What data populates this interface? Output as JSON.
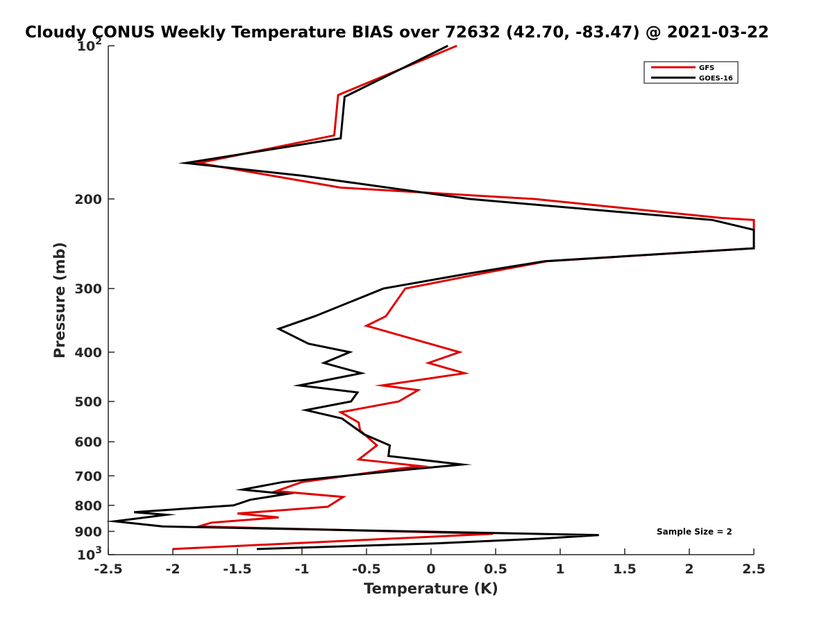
{
  "chart_data": {
    "type": "line",
    "title": "Cloudy CONUS Weekly Temperature BIAS over 72632 (42.70, -83.47) @ 2021-03-22",
    "xlabel": "Temperature (K)",
    "ylabel": "Pressure (mb)",
    "xlim": [
      -2.5,
      2.5
    ],
    "ylim": [
      100,
      1000
    ],
    "yscale": "log",
    "y_reversed": true,
    "x_ticks": [
      -2.5,
      -2,
      -1.5,
      -1,
      -0.5,
      0,
      0.5,
      1,
      1.5,
      2,
      2.5
    ],
    "x_tick_labels": [
      "-2.5",
      "-2",
      "-1.5",
      "-1",
      "-0.5",
      "0",
      "0.5",
      "1",
      "1.5",
      "2",
      "2.5"
    ],
    "y_ticks": [
      100,
      200,
      300,
      400,
      500,
      600,
      700,
      800,
      900,
      1000
    ],
    "y_tick_labels": [
      {
        "base": "10",
        "exp": "2"
      },
      {
        "base": "200",
        "exp": ""
      },
      {
        "base": "300",
        "exp": ""
      },
      {
        "base": "400",
        "exp": ""
      },
      {
        "base": "500",
        "exp": ""
      },
      {
        "base": "600",
        "exp": ""
      },
      {
        "base": "700",
        "exp": ""
      },
      {
        "base": "800",
        "exp": ""
      },
      {
        "base": "900",
        "exp": ""
      },
      {
        "base": "10",
        "exp": "3"
      }
    ],
    "grid": false,
    "legend_position": "top-right",
    "annotation": "Sample Size = 2",
    "series": [
      {
        "name": "GFS",
        "color": "#e00000",
        "points": [
          [
            0.2,
            100
          ],
          [
            -0.72,
            125
          ],
          [
            -0.75,
            150
          ],
          [
            -1.8,
            170
          ],
          [
            -0.7,
            190
          ],
          [
            0.8,
            200
          ],
          [
            2.25,
            218
          ],
          [
            2.5,
            220
          ],
          [
            2.5,
            250
          ],
          [
            0.9,
            265
          ],
          [
            0.4,
            280
          ],
          [
            -0.2,
            300
          ],
          [
            -0.35,
            340
          ],
          [
            -0.5,
            355
          ],
          [
            0.22,
            400
          ],
          [
            -0.02,
            420
          ],
          [
            0.26,
            440
          ],
          [
            -0.38,
            465
          ],
          [
            -0.1,
            475
          ],
          [
            -0.25,
            500
          ],
          [
            -0.7,
            525
          ],
          [
            -0.56,
            550
          ],
          [
            -0.55,
            570
          ],
          [
            -0.42,
            610
          ],
          [
            -0.56,
            650
          ],
          [
            -0.08,
            670
          ],
          [
            -0.3,
            680
          ],
          [
            -1.0,
            720
          ],
          [
            -1.2,
            750
          ],
          [
            -0.68,
            770
          ],
          [
            -0.8,
            805
          ],
          [
            -1.5,
            830
          ],
          [
            -1.18,
            845
          ],
          [
            -1.7,
            865
          ],
          [
            -1.8,
            880
          ],
          [
            0.48,
            910
          ],
          [
            -2.0,
            975
          ]
        ]
      },
      {
        "name": "GOES-16",
        "color": "#000000",
        "points": [
          [
            0.13,
            100
          ],
          [
            -0.67,
            126
          ],
          [
            -0.7,
            152
          ],
          [
            -1.9,
            170
          ],
          [
            -1.0,
            180
          ],
          [
            0.3,
            200
          ],
          [
            2.18,
            220
          ],
          [
            2.5,
            230
          ],
          [
            2.5,
            250
          ],
          [
            0.88,
            265
          ],
          [
            0.3,
            280
          ],
          [
            -0.37,
            300
          ],
          [
            -0.9,
            340
          ],
          [
            -1.18,
            360
          ],
          [
            -0.95,
            385
          ],
          [
            -0.63,
            400
          ],
          [
            -0.83,
            420
          ],
          [
            -0.54,
            440
          ],
          [
            -1.02,
            465
          ],
          [
            -0.57,
            480
          ],
          [
            -0.62,
            500
          ],
          [
            -0.97,
            520
          ],
          [
            -0.69,
            540
          ],
          [
            -0.52,
            580
          ],
          [
            -0.32,
            610
          ],
          [
            -0.33,
            640
          ],
          [
            0.24,
            665
          ],
          [
            -0.17,
            680
          ],
          [
            -1.15,
            720
          ],
          [
            -1.46,
            745
          ],
          [
            -1.12,
            760
          ],
          [
            -1.4,
            780
          ],
          [
            -1.53,
            800
          ],
          [
            -2.3,
            825
          ],
          [
            -2.05,
            835
          ],
          [
            -2.45,
            860
          ],
          [
            -2.08,
            880
          ],
          [
            1.3,
            915
          ],
          [
            0.85,
            930
          ],
          [
            0.05,
            950
          ],
          [
            -1.35,
            975
          ]
        ]
      }
    ]
  }
}
